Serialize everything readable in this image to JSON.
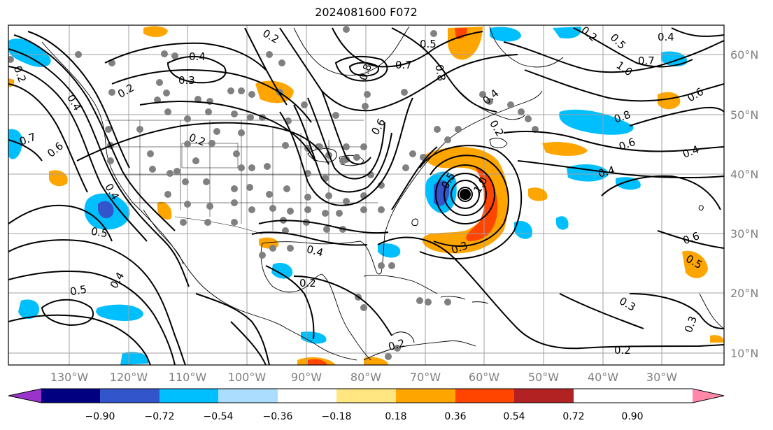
{
  "title": "2024081600 F072",
  "lon_ticks": [
    "130°W",
    "120°W",
    "110°W",
    "100°W",
    "90°W",
    "80°W",
    "70°W",
    "60°W",
    "50°W",
    "40°W",
    "30°W"
  ],
  "lat_ticks": [
    "60°N",
    "50°N",
    "40°N",
    "30°N",
    "20°N",
    "10°N"
  ],
  "colorbar": {
    "colors": [
      "#9933cc",
      "#000080",
      "#3355cc",
      "#00bfff",
      "#aaddff",
      "#ffffff",
      "#ffe680",
      "#ffa500",
      "#ff4500",
      "#b22222",
      "#ff88aa"
    ],
    "tick_labels": [
      "−0.90",
      "−0.72",
      "−0.54",
      "−0.36",
      "−0.18",
      "0.18",
      "0.36",
      "0.54",
      "0.72",
      "0.90"
    ]
  },
  "contour_labels": [
    "0.2",
    "0.4",
    "0.3",
    "0.2",
    "0.4",
    "0.5",
    "0.7",
    "0.8",
    "0.8",
    "0.4",
    "0.7",
    "1.0",
    "0.6",
    "0.8",
    "0.6",
    "0.4",
    "0.4",
    "0.6",
    "0.5",
    "0.3",
    "0.2",
    "0.3",
    "0.4",
    "0.2",
    "0.7",
    "0.6",
    "0.5",
    "0.5",
    "0.4",
    "0.4",
    "0.2",
    "0.5",
    "0.3",
    "0.2",
    "1.0",
    "0.6",
    "0.5",
    "0.4",
    "0.2",
    "0.2",
    "0.2"
  ],
  "colors": {
    "negative_fill": "#00bfff",
    "positive_fill": "#ffa500",
    "strong_positive": "#ff4500",
    "strong_negative": "#3355cc",
    "dots": "#808080"
  }
}
